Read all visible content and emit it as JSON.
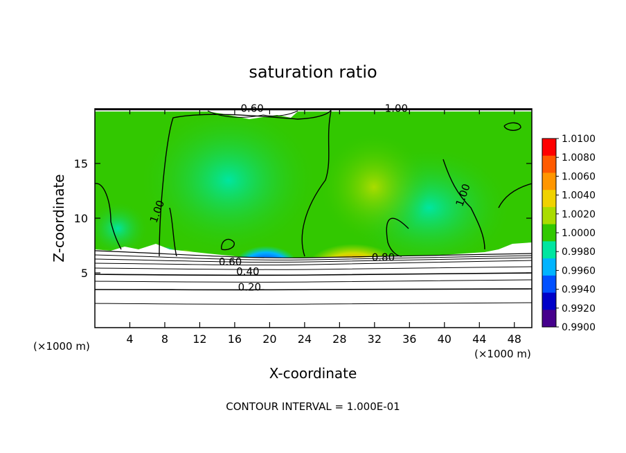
{
  "chart_data": {
    "type": "heatmap",
    "title": "saturation ratio",
    "xlabel": "X-coordinate",
    "ylabel": "Z-coordinate",
    "x_unit_left": "(×1000 m)",
    "x_unit_right": "(×1000 m)",
    "xlim": [
      0,
      50
    ],
    "ylim": [
      0,
      20
    ],
    "x_ticks": [
      4,
      8,
      12,
      16,
      20,
      24,
      28,
      32,
      36,
      40,
      44,
      48
    ],
    "y_ticks": [
      5,
      10,
      15
    ],
    "colorbar": {
      "min": 0.99,
      "max": 1.01,
      "labels": [
        "1.0100",
        "1.0080",
        "1.0060",
        "1.0040",
        "1.0020",
        "1.0000",
        "0.9980",
        "0.9960",
        "0.9940",
        "0.9920",
        "0.9900"
      ],
      "colors": [
        "#ff0000",
        "#ff5a00",
        "#ff9600",
        "#f0d200",
        "#aadc00",
        "#32c800",
        "#00e6a0",
        "#00b4ff",
        "#0050ff",
        "#0000c8",
        "#46008c"
      ]
    },
    "contour_labels": [
      {
        "text": "1.00",
        "x": 7.5,
        "y": 10.5
      },
      {
        "text": "1.00",
        "x": 42.5,
        "y": 12.0
      },
      {
        "text": "1.00",
        "x": 34.5,
        "y": 19.7
      },
      {
        "text": "0.60",
        "x": 15.5,
        "y": 5.7
      },
      {
        "text": "0.40",
        "x": 17.5,
        "y": 4.8
      },
      {
        "text": "0.20",
        "x": 17.7,
        "y": 3.4
      },
      {
        "text": "0.80",
        "x": 33.0,
        "y": 6.1
      },
      {
        "text": "0.60",
        "x": 18.0,
        "y": 19.7
      }
    ],
    "contour_interval": "CONTOUR INTERVAL = 1.000E-01"
  }
}
